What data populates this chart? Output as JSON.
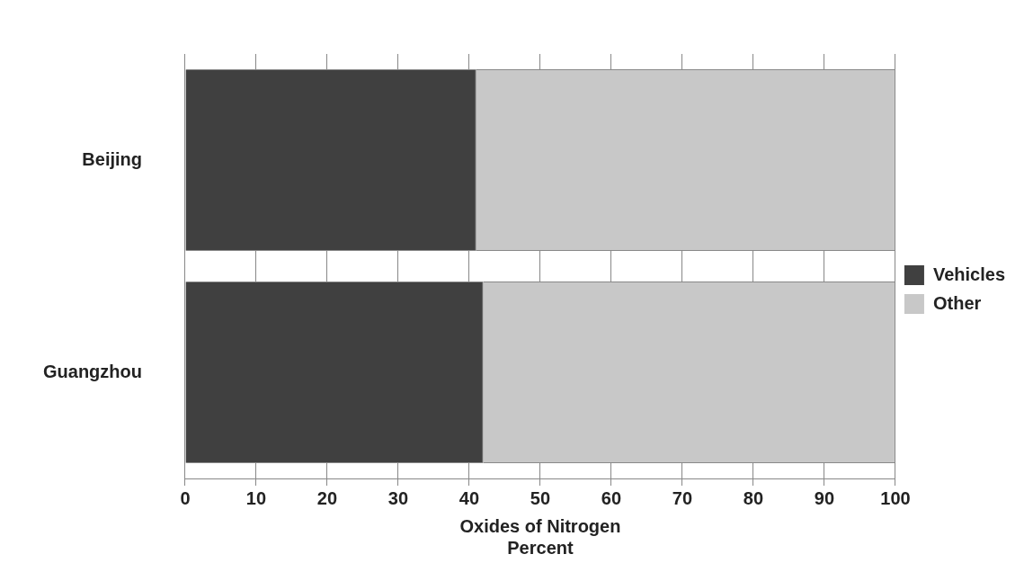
{
  "chart_data": {
    "type": "bar",
    "orientation": "horizontal",
    "stacked": true,
    "xlabel": "Oxides of Nitrogen\nPercent",
    "categories": [
      "Beijing",
      "Guangzhou"
    ],
    "series": [
      {
        "name": "Vehicles",
        "color": "#404040",
        "values": [
          41,
          42
        ]
      },
      {
        "name": "Other",
        "color": "#c8c8c8",
        "values": [
          59,
          58
        ]
      }
    ],
    "xlim": [
      0,
      100
    ],
    "xticks": [
      0,
      10,
      20,
      30,
      40,
      50,
      60,
      70,
      80,
      90,
      100
    ],
    "grid": "x",
    "legend": "right"
  }
}
